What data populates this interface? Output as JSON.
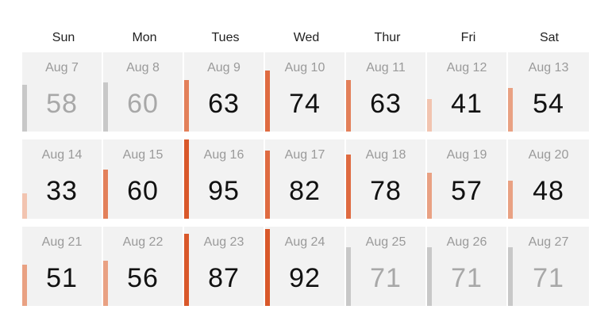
{
  "weekdays": [
    "Sun",
    "Mon",
    "Tues",
    "Wed",
    "Thur",
    "Fri",
    "Sat"
  ],
  "colors": {
    "muted_bar": "#c8c8c8",
    "heat_scale": [
      "#f2c4b0",
      "#e9a183",
      "#e3805a",
      "#df6b41",
      "#d9582a"
    ]
  },
  "weeks": [
    [
      {
        "date": "Aug 7",
        "temp": "58",
        "muted": true
      },
      {
        "date": "Aug 8",
        "temp": "60",
        "muted": true
      },
      {
        "date": "Aug 9",
        "temp": "63",
        "muted": false
      },
      {
        "date": "Aug 10",
        "temp": "74",
        "muted": false
      },
      {
        "date": "Aug 11",
        "temp": "63",
        "muted": false
      },
      {
        "date": "Aug 12",
        "temp": "41",
        "muted": false
      },
      {
        "date": "Aug 13",
        "temp": "54",
        "muted": false
      }
    ],
    [
      {
        "date": "Aug 14",
        "temp": "33",
        "muted": false
      },
      {
        "date": "Aug 15",
        "temp": "60",
        "muted": false
      },
      {
        "date": "Aug 16",
        "temp": "95",
        "muted": false
      },
      {
        "date": "Aug 17",
        "temp": "82",
        "muted": false
      },
      {
        "date": "Aug 18",
        "temp": "78",
        "muted": false
      },
      {
        "date": "Aug 19",
        "temp": "57",
        "muted": false
      },
      {
        "date": "Aug 20",
        "temp": "48",
        "muted": false
      }
    ],
    [
      {
        "date": "Aug 21",
        "temp": "51",
        "muted": false
      },
      {
        "date": "Aug 22",
        "temp": "56",
        "muted": false
      },
      {
        "date": "Aug 23",
        "temp": "87",
        "muted": false
      },
      {
        "date": "Aug 24",
        "temp": "92",
        "muted": false
      },
      {
        "date": "Aug 25",
        "temp": "71",
        "muted": true
      },
      {
        "date": "Aug 26",
        "temp": "71",
        "muted": true
      },
      {
        "date": "Aug 27",
        "temp": "71",
        "muted": true
      }
    ]
  ]
}
